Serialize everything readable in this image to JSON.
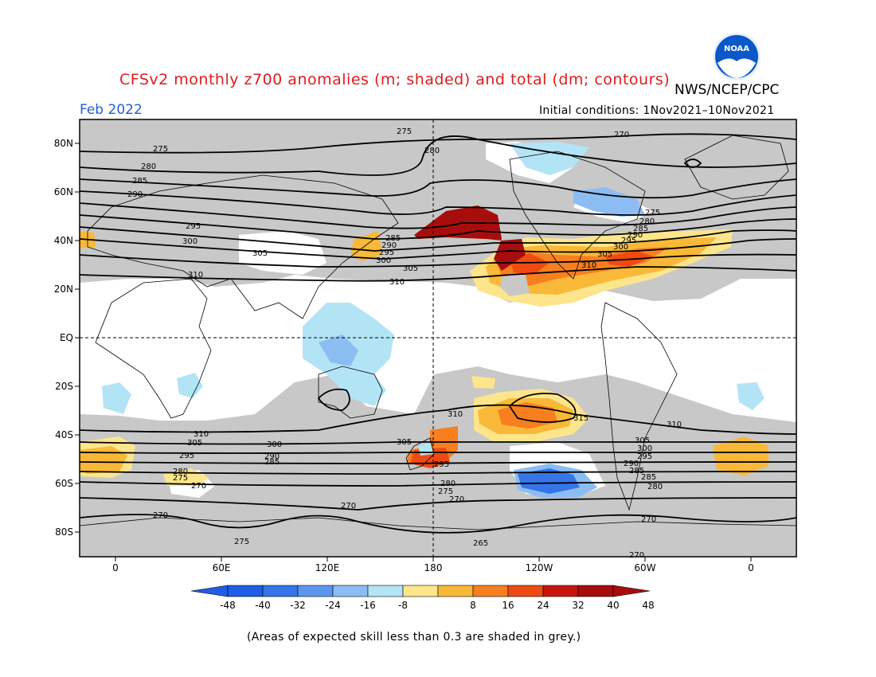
{
  "header": {
    "title": "CFSv2 monthly z700 anomalies (m; shaded) and total (dm; contours)",
    "agency": "NWS/NCEP/CPC",
    "period": "Feb 2022",
    "initial_conditions": "Initial conditions: 1Nov2021–10Nov2021"
  },
  "logo": {
    "text": "NOAA",
    "icon": "noaa-logo-icon",
    "colors": {
      "ring": "#0a58ca",
      "gull": "#ffffff",
      "rim": "#e8f0ff"
    }
  },
  "axes": {
    "lat_labels": [
      "80N",
      "60N",
      "40N",
      "20N",
      "EQ",
      "20S",
      "40S",
      "60S",
      "80S"
    ],
    "lon_labels": [
      "0",
      "60E",
      "120E",
      "180",
      "120W",
      "60W",
      "0"
    ]
  },
  "colorbar": {
    "ticks": [
      "-48",
      "-40",
      "-32",
      "-24",
      "-16",
      "-8",
      "8",
      "16",
      "24",
      "32",
      "40",
      "48"
    ],
    "colors": [
      "#1e5ee6",
      "#3575e8",
      "#5a97ec",
      "#8cbdf2",
      "#b3e4f6",
      "#ffffff",
      "#fde58b",
      "#f9b838",
      "#f77f1f",
      "#ef4a14",
      "#c8160f",
      "#a80d0d"
    ]
  },
  "contour_labels": [
    "275",
    "270",
    "275",
    "280",
    "280",
    "285",
    "290",
    "295",
    "300",
    "305",
    "310",
    "310",
    "305",
    "300",
    "295",
    "290",
    "285",
    "275",
    "280",
    "285",
    "290",
    "295",
    "300",
    "305",
    "310",
    "310",
    "315",
    "310",
    "305",
    "300",
    "295",
    "290",
    "285",
    "310",
    "305",
    "300",
    "295",
    "280",
    "275",
    "270",
    "290",
    "285",
    "305",
    "295",
    "280",
    "275",
    "270",
    "305",
    "300",
    "295",
    "290",
    "285",
    "280",
    "275",
    "270",
    "270",
    "270",
    "275",
    "265",
    "270"
  ],
  "footnote": "(Areas of expected skill less than 0.3 are shaded in grey.)",
  "map_colors": {
    "grey": "#c8c8c8",
    "land_line": "#000000"
  }
}
